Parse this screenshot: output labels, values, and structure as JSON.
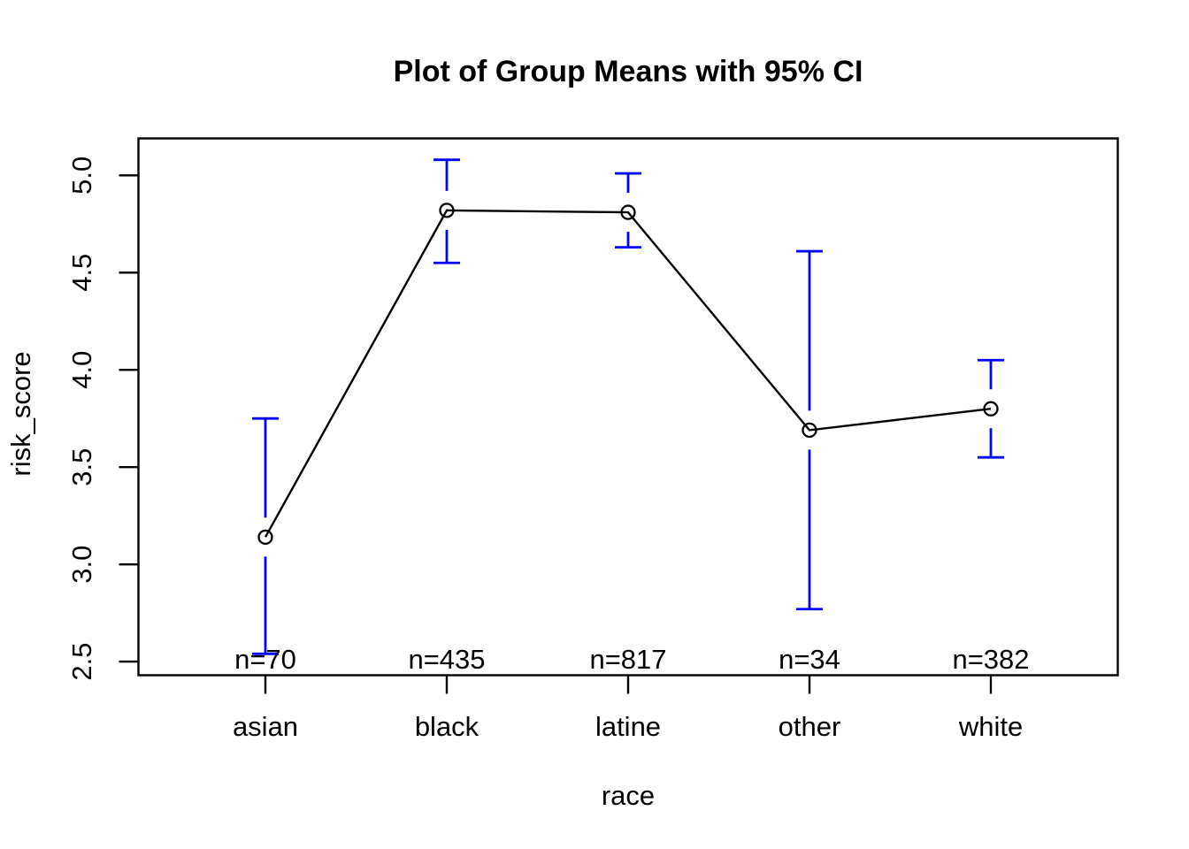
{
  "chart_data": {
    "type": "line",
    "subtype": "group-means-with-error-bars",
    "title": "Plot of Group Means with 95% CI",
    "xlabel": "race",
    "ylabel": "risk_score",
    "categories": [
      "asian",
      "black",
      "latine",
      "other",
      "white"
    ],
    "series": [
      {
        "name": "group means",
        "values": [
          3.14,
          4.82,
          4.81,
          3.69,
          3.8
        ],
        "ci_lower": [
          2.54,
          4.55,
          4.63,
          2.77,
          3.55
        ],
        "ci_upper": [
          3.75,
          5.08,
          5.01,
          4.61,
          4.05
        ]
      }
    ],
    "n_labels": [
      "n=70",
      "n=435",
      "n=817",
      "n=34",
      "n=382"
    ],
    "yticks": [
      2.5,
      3.0,
      3.5,
      4.0,
      4.5,
      5.0
    ],
    "ytick_labels": [
      "2.5",
      "3.0",
      "3.5",
      "4.0",
      "4.5",
      "5.0"
    ],
    "ylim": [
      2.43,
      5.19
    ],
    "xlim": [
      0.3,
      5.7
    ],
    "grid": "off",
    "legend": "none",
    "marker": "open-circle",
    "colors": {
      "error_bar": "#0000FF",
      "line": "#000000",
      "text": "#000000",
      "background": "#FFFFFF"
    }
  }
}
